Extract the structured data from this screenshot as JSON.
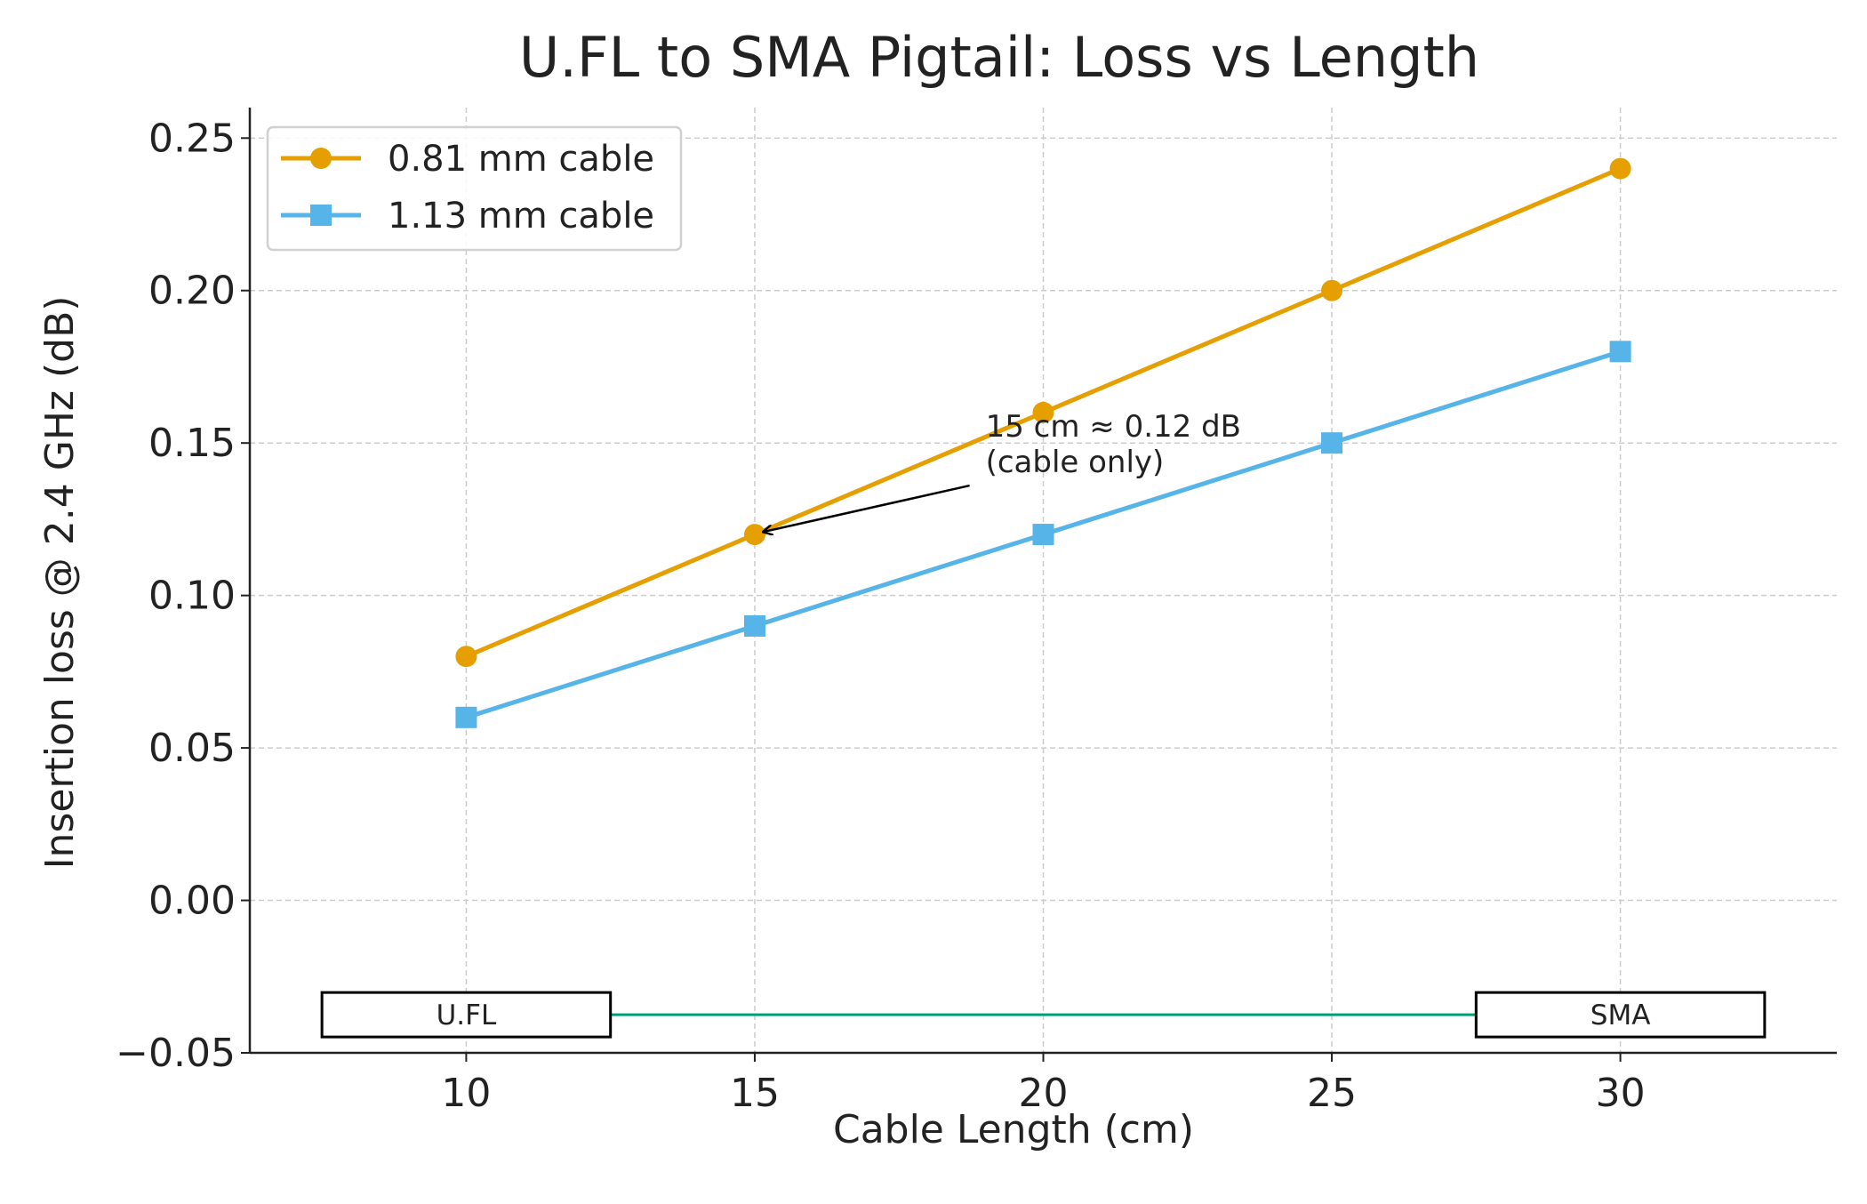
{
  "chart_data": {
    "type": "line",
    "title": "U.FL to SMA Pigtail: Loss vs Length",
    "xlabel": "Cable Length (cm)",
    "ylabel": "Insertion loss @ 2.4 GHz (dB)",
    "x": [
      10,
      15,
      20,
      25,
      30
    ],
    "xlim": [
      6.25,
      33.75
    ],
    "ylim": [
      -0.05,
      0.26
    ],
    "xticks": [
      10,
      15,
      20,
      25,
      30
    ],
    "xtick_labels": [
      "10",
      "15",
      "20",
      "25",
      "30"
    ],
    "yticks": [
      -0.05,
      0.0,
      0.05,
      0.1,
      0.15,
      0.2,
      0.25
    ],
    "ytick_labels": [
      "−0.05",
      "0.00",
      "0.05",
      "0.10",
      "0.15",
      "0.20",
      "0.25"
    ],
    "grid": true,
    "legend_position": "top-left",
    "series": [
      {
        "name": "0.81 mm cable",
        "values": [
          0.08,
          0.12,
          0.16,
          0.2,
          0.24
        ],
        "color": "#E69F00",
        "marker": "circle"
      },
      {
        "name": "1.13 mm cable",
        "values": [
          0.06,
          0.09,
          0.12,
          0.15,
          0.18
        ],
        "color": "#56B4E9",
        "marker": "square"
      }
    ],
    "annotation": {
      "text_lines": [
        "15 cm ≈ 0.12 dB",
        "(cable only)"
      ],
      "point": [
        15,
        0.12
      ],
      "text_at": [
        19,
        0.155
      ]
    },
    "connector_diagram": {
      "line_y": -0.0375,
      "line_color": "#009E73",
      "left_box": {
        "label": "U.FL",
        "x_range": [
          7.5,
          12.5
        ]
      },
      "right_box": {
        "label": "SMA",
        "x_range": [
          27.5,
          32.5
        ]
      }
    }
  }
}
